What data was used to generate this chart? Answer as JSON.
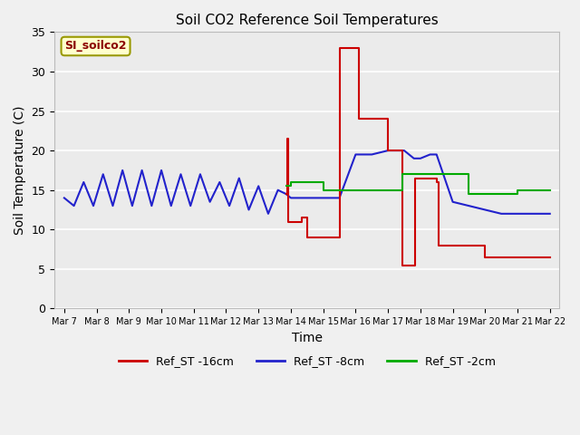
{
  "title": "Soil CO2 Reference Soil Temperatures",
  "xlabel": "Time",
  "ylabel": "Soil Temperature (C)",
  "ylim": [
    0,
    35
  ],
  "bg_color": "#e8e8e8",
  "plot_bg": "#ebebeb",
  "label_box": "SI_soilco2",
  "legend": [
    "Ref_ST -16cm",
    "Ref_ST -8cm",
    "Ref_ST -2cm"
  ],
  "legend_colors": [
    "#cc0000",
    "#2222cc",
    "#00aa00"
  ],
  "xtick_labels": [
    "Mar 7",
    "Mar 8",
    "Mar 9",
    "Mar 10",
    "Mar 11",
    "Mar 12",
    "Mar 13",
    "Mar 14",
    "Mar 15",
    "Mar 16",
    "Mar 17",
    "Mar 18",
    "Mar 19",
    "Mar 20",
    "Mar 21",
    "Mar 22"
  ],
  "red_x": [
    6.85,
    6.88,
    6.9,
    6.92,
    7.0,
    7.05,
    7.15,
    7.3,
    7.35,
    7.4,
    7.5,
    7.55,
    7.6,
    7.7,
    7.8,
    7.85,
    8.0,
    8.5,
    9.0,
    9.1,
    9.5,
    10.0,
    10.05,
    10.4,
    10.45,
    10.8,
    10.85,
    11.0,
    11.5,
    11.55,
    12.0,
    12.5,
    13.0,
    13.5,
    14.0,
    14.5,
    15.0
  ],
  "red_y": [
    14.5,
    21.5,
    21.5,
    11.0,
    11.0,
    11.0,
    11.0,
    11.0,
    11.5,
    11.5,
    9.0,
    9.0,
    9.0,
    9.0,
    9.0,
    9.0,
    9.0,
    33.0,
    33.0,
    24.0,
    24.0,
    20.0,
    20.0,
    20.0,
    5.5,
    5.5,
    16.5,
    16.5,
    16.0,
    8.0,
    8.0,
    8.0,
    6.5,
    6.5,
    6.5,
    6.5,
    6.5
  ],
  "blue_x": [
    0,
    0.3,
    0.6,
    0.9,
    1.2,
    1.5,
    1.8,
    2.1,
    2.4,
    2.7,
    3.0,
    3.3,
    3.6,
    3.9,
    4.2,
    4.5,
    4.8,
    5.1,
    5.4,
    5.7,
    6.0,
    6.3,
    6.6,
    6.85,
    7.0,
    7.5,
    8.0,
    8.5,
    9.0,
    9.5,
    10.0,
    10.5,
    10.8,
    11.0,
    11.3,
    11.5,
    12.0,
    12.5,
    13.0,
    13.5,
    14.0,
    14.5,
    15.0
  ],
  "blue_y": [
    14.0,
    13.0,
    16.0,
    13.0,
    17.0,
    13.0,
    17.5,
    13.0,
    17.5,
    13.0,
    17.5,
    13.0,
    17.0,
    13.0,
    17.0,
    13.5,
    16.0,
    13.0,
    16.5,
    12.5,
    15.5,
    12.0,
    15.0,
    14.5,
    14.0,
    14.0,
    14.0,
    14.0,
    19.5,
    19.5,
    20.0,
    20.0,
    19.0,
    19.0,
    19.5,
    19.5,
    13.5,
    13.0,
    12.5,
    12.0,
    12.0,
    12.0,
    12.0
  ],
  "green_x": [
    6.85,
    7.0,
    8.0,
    9.0,
    10.0,
    10.45,
    10.8,
    11.5,
    12.0,
    12.5,
    13.5,
    14.0,
    14.5,
    15.0
  ],
  "green_y": [
    15.5,
    16.0,
    15.0,
    15.0,
    15.0,
    17.0,
    17.0,
    17.0,
    17.0,
    14.5,
    14.5,
    15.0,
    15.0,
    15.0
  ]
}
